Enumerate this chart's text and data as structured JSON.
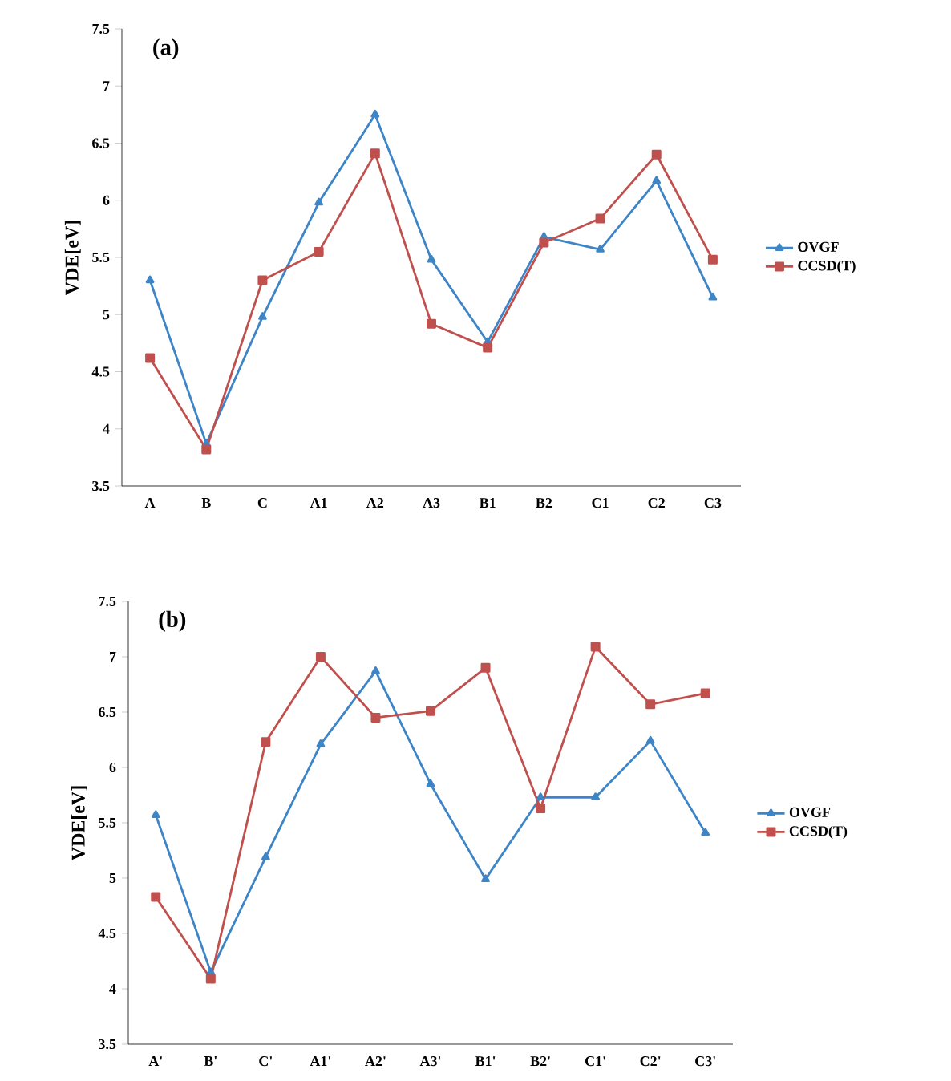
{
  "chart_data": [
    {
      "type": "line",
      "title": "(a)",
      "ylabel": "VDE[eV]",
      "categories": [
        "A",
        "B",
        "C",
        "A1",
        "A2",
        "A3",
        "B1",
        "B2",
        "C1",
        "C2",
        "C3"
      ],
      "ylim": [
        3.5,
        7.5
      ],
      "yticks": [
        3.5,
        4,
        4.5,
        5,
        5.5,
        6,
        6.5,
        7,
        7.5
      ],
      "grid": false,
      "legend": "right",
      "series": [
        {
          "name": "OVGF",
          "color": "#3d85c6",
          "marker": "triangle",
          "values": [
            5.3,
            3.87,
            4.98,
            5.98,
            6.75,
            5.48,
            4.76,
            5.68,
            5.57,
            6.17,
            5.15
          ]
        },
        {
          "name": "CCSD(T)",
          "color": "#c0504d",
          "marker": "square",
          "values": [
            4.62,
            3.82,
            5.3,
            5.55,
            6.41,
            4.92,
            4.71,
            5.63,
            5.84,
            6.4,
            5.48
          ]
        }
      ]
    },
    {
      "type": "line",
      "title": "(b)",
      "ylabel": "VDE[eV]",
      "categories": [
        "A'",
        "B'",
        "C'",
        "A1'",
        "A2'",
        "A3'",
        "B1'",
        "B2'",
        "C1'",
        "C2'",
        "C3'"
      ],
      "ylim": [
        3.5,
        7.5
      ],
      "yticks": [
        3.5,
        4,
        4.5,
        5,
        5.5,
        6,
        6.5,
        7,
        7.5
      ],
      "grid": false,
      "legend": "right",
      "series": [
        {
          "name": "OVGF",
          "color": "#3d85c6",
          "marker": "triangle",
          "values": [
            5.57,
            4.15,
            5.19,
            6.21,
            6.87,
            5.85,
            4.99,
            5.73,
            5.73,
            6.24,
            5.41
          ]
        },
        {
          "name": "CCSD(T)",
          "color": "#c0504d",
          "marker": "square",
          "values": [
            4.83,
            4.09,
            6.23,
            7.0,
            6.45,
            6.51,
            6.9,
            5.63,
            7.09,
            6.57,
            6.67
          ]
        }
      ]
    }
  ]
}
